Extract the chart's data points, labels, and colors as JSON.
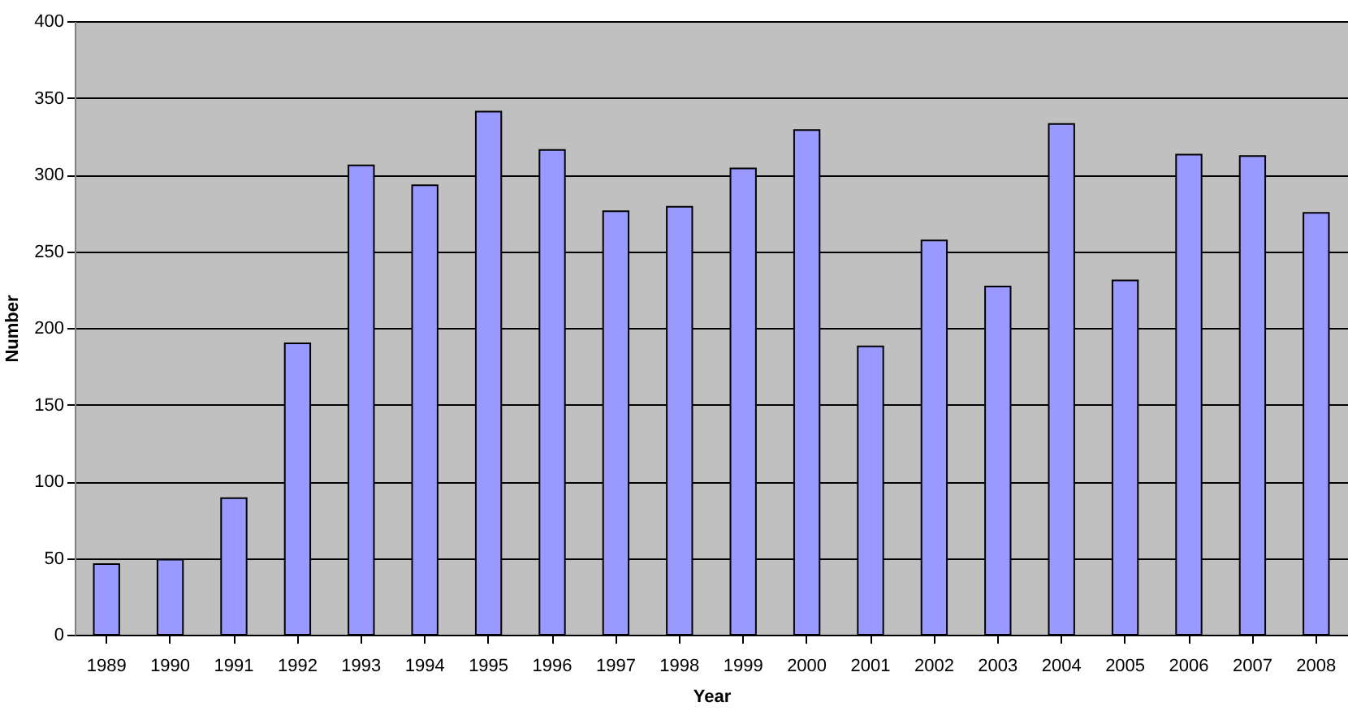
{
  "chart_data": {
    "type": "bar",
    "xlabel": "Year",
    "ylabel": "Number",
    "categories": [
      "1989",
      "1990",
      "1991",
      "1992",
      "1993",
      "1994",
      "1995",
      "1996",
      "1997",
      "1998",
      "1999",
      "2000",
      "2001",
      "2002",
      "2003",
      "2004",
      "2005",
      "2006",
      "2007",
      "2008"
    ],
    "values": [
      46,
      49,
      89,
      190,
      306,
      293,
      341,
      316,
      276,
      279,
      304,
      329,
      188,
      257,
      227,
      333,
      231,
      313,
      312,
      275
    ],
    "color": "#9999ff",
    "ylim": [
      0,
      400
    ],
    "yticks": [
      0,
      50,
      100,
      150,
      200,
      250,
      300,
      350,
      400
    ],
    "grid": "y"
  }
}
